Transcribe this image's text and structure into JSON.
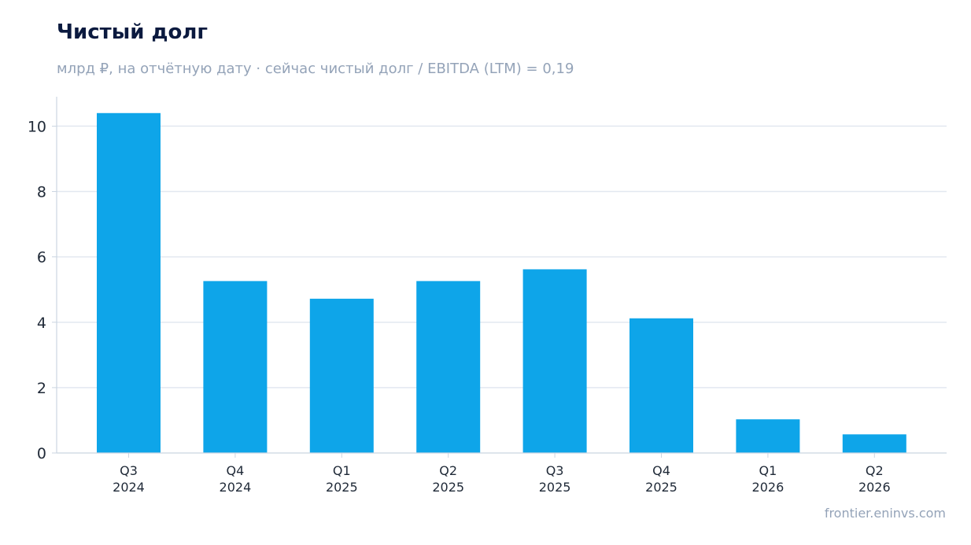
{
  "header": {
    "title": "Чистый долг",
    "subtitle": "млрд ₽, на отчётную дату · сейчас чистый долг / EBITDA (LTM) = 0,19"
  },
  "footer": {
    "source": "frontier.eninvs.com"
  },
  "colors": {
    "bar": "#0ea5e9",
    "grid": "#e2e8f0",
    "axis": "#cbd5e1",
    "title": "#0b1a3f",
    "muted": "#94a3b8"
  },
  "chart_data": {
    "type": "bar",
    "title": "Чистый долг",
    "subtitle": "млрд ₽, на отчётную дату · сейчас чистый долг / EBITDA (LTM) = 0,19",
    "categories": [
      [
        "Q3",
        "2024"
      ],
      [
        "Q4",
        "2024"
      ],
      [
        "Q1",
        "2025"
      ],
      [
        "Q2",
        "2025"
      ],
      [
        "Q3",
        "2025"
      ],
      [
        "Q4",
        "2025"
      ],
      [
        "Q1",
        "2026"
      ],
      [
        "Q2",
        "2026"
      ]
    ],
    "values": [
      10.4,
      5.26,
      4.72,
      5.26,
      5.62,
      4.12,
      1.03,
      0.57
    ],
    "ylim": [
      0,
      10.9
    ],
    "yticks": [
      0,
      2,
      4,
      6,
      8,
      10
    ],
    "grid": true,
    "xlabel": "",
    "ylabel": ""
  }
}
